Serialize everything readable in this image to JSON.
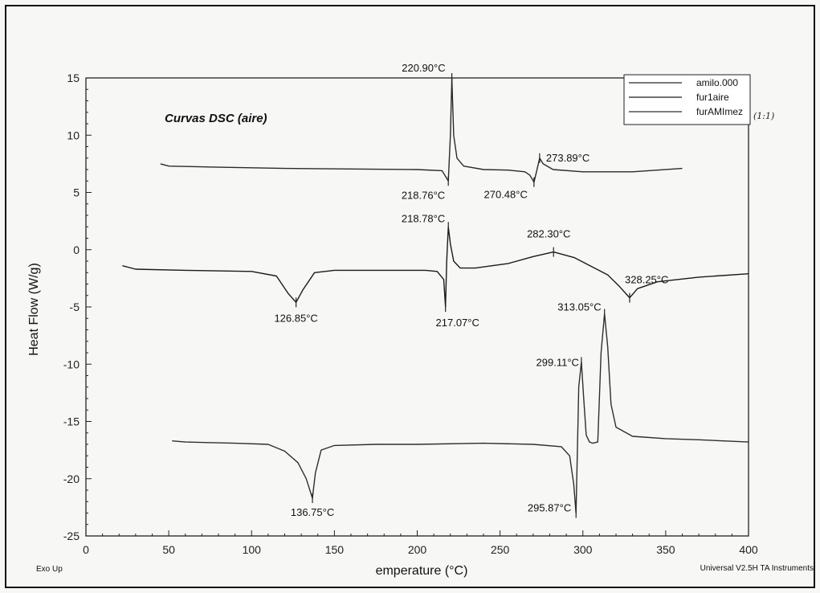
{
  "chart_data": {
    "type": "line",
    "title": "Curvas DSC (aire)",
    "xlabel": "emperature (°C)",
    "ylabel": "Heat Flow (W/g)",
    "xlim": [
      0,
      400
    ],
    "ylim": [
      -25,
      15
    ],
    "xticks": [
      0,
      50,
      100,
      150,
      200,
      250,
      300,
      350,
      400
    ],
    "yticks": [
      15,
      10,
      5,
      0,
      -5,
      -10,
      -15,
      -20,
      -25
    ],
    "legend_position": "top-right",
    "grid": false,
    "footer_left": "Exo Up",
    "footer_right": "Universal V2.5H TA Instruments",
    "legend_note": "(1:1)",
    "series": [
      {
        "name": "amilo.000",
        "x": [
          45,
          50,
          80,
          120,
          160,
          200,
          215,
          218.76,
          220.0,
          220.9,
          222,
          224,
          228,
          240,
          255,
          265,
          268,
          270.48,
          272,
          273.89,
          276,
          282,
          300,
          330,
          360
        ],
        "y": [
          7.5,
          7.3,
          7.2,
          7.1,
          7.05,
          7.0,
          6.9,
          6.0,
          10.0,
          15.0,
          10.0,
          8.0,
          7.3,
          7.0,
          6.95,
          6.8,
          6.5,
          5.9,
          6.8,
          8.0,
          7.5,
          7.0,
          6.8,
          6.8,
          7.1
        ]
      },
      {
        "name": "fur1aire",
        "x": [
          22,
          30,
          60,
          100,
          115,
          122,
          126.85,
          131,
          138,
          150,
          180,
          205,
          212,
          216,
          217.07,
          217.8,
          218.78,
          220,
          222,
          226,
          235,
          255,
          270,
          282.3,
          295,
          315,
          322,
          328.25,
          333,
          345,
          370,
          400
        ],
        "y": [
          -1.4,
          -1.7,
          -1.8,
          -1.9,
          -2.3,
          -3.8,
          -4.6,
          -3.5,
          -2.0,
          -1.8,
          -1.8,
          -1.8,
          -1.9,
          -2.6,
          -5.0,
          -1.0,
          2.0,
          0.5,
          -1.0,
          -1.6,
          -1.6,
          -1.2,
          -0.6,
          -0.2,
          -0.7,
          -2.2,
          -3.2,
          -4.2,
          -3.4,
          -2.8,
          -2.4,
          -2.1
        ]
      },
      {
        "name": "furAMImez",
        "x": [
          52,
          60,
          90,
          110,
          120,
          128,
          133,
          136.75,
          138.5,
          142,
          150,
          175,
          200,
          240,
          270,
          287,
          292,
          294.5,
          295.87,
          296.8,
          297.5,
          299.11,
          300.5,
          302,
          304,
          306,
          309,
          311,
          313.05,
          315,
          317,
          320,
          330,
          350,
          370,
          400
        ],
        "y": [
          -16.7,
          -16.8,
          -16.9,
          -17.0,
          -17.6,
          -18.6,
          -20.0,
          -21.7,
          -19.5,
          -17.5,
          -17.1,
          -17.0,
          -17.0,
          -16.9,
          -17.0,
          -17.2,
          -18.0,
          -20.5,
          -23.0,
          -17.0,
          -12.0,
          -9.8,
          -13.0,
          -16.2,
          -16.8,
          -16.9,
          -16.8,
          -9.0,
          -5.6,
          -8.5,
          -13.5,
          -15.5,
          -16.3,
          -16.5,
          -16.6,
          -16.8
        ]
      }
    ],
    "annotations": [
      {
        "text": "220.90°C",
        "x": 220.9,
        "y": 15.0
      },
      {
        "text": "218.76°C",
        "x": 218.76,
        "y": 6.0
      },
      {
        "text": "270.48°C",
        "x": 270.48,
        "y": 5.9
      },
      {
        "text": "273.89°C",
        "x": 273.89,
        "y": 8.0
      },
      {
        "text": "218.78°C",
        "x": 218.78,
        "y": 2.0
      },
      {
        "text": "282.30°C",
        "x": 282.3,
        "y": -0.2
      },
      {
        "text": "328.25°C",
        "x": 328.25,
        "y": -4.2
      },
      {
        "text": "126.85°C",
        "x": 126.85,
        "y": -4.6
      },
      {
        "text": "217.07°C",
        "x": 217.07,
        "y": -5.0
      },
      {
        "text": "313.05°C",
        "x": 313.05,
        "y": -5.6
      },
      {
        "text": "299.11°C",
        "x": 299.11,
        "y": -9.8
      },
      {
        "text": "136.75°C",
        "x": 136.75,
        "y": -21.7
      },
      {
        "text": "295.87°C",
        "x": 295.87,
        "y": -23.0
      }
    ]
  }
}
